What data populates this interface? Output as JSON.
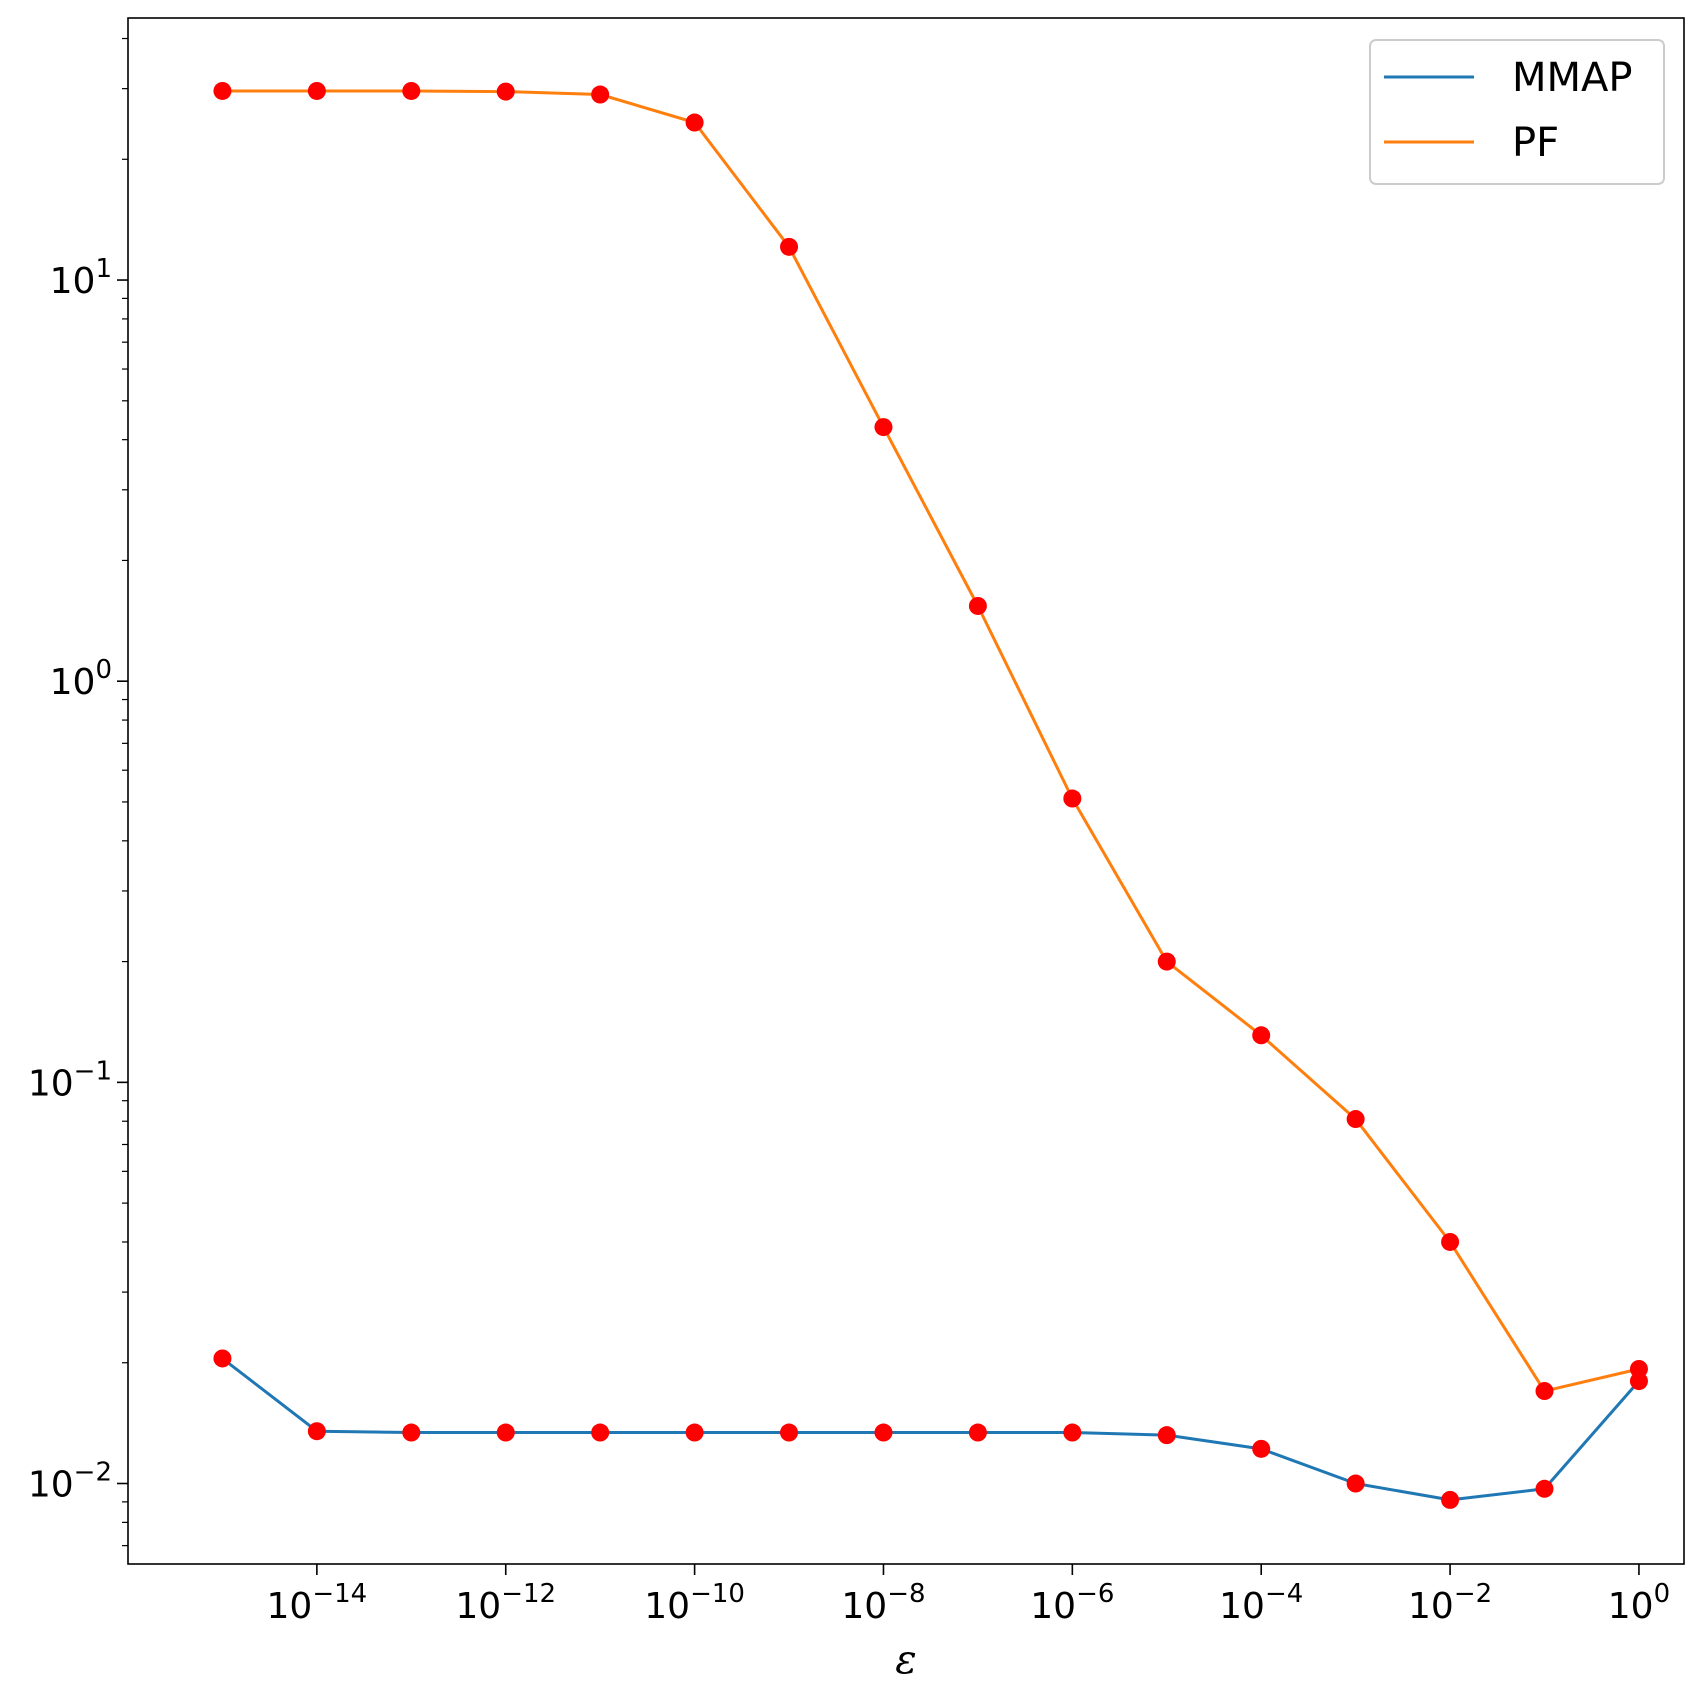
{
  "chart_data": {
    "type": "line",
    "xlabel": "ε",
    "ylabel": "",
    "title": "",
    "x_scale": "log",
    "y_scale": "log",
    "xlim": [
      1e-16,
      3.0
    ],
    "ylim": [
      0.0063,
      45
    ],
    "grid": false,
    "legend_position": "top-right",
    "marker_color": "#ff0000",
    "x": [
      1e-15,
      1e-14,
      1e-13,
      1e-12,
      1e-11,
      1e-10,
      1e-09,
      1e-08,
      1e-07,
      1e-06,
      1e-05,
      0.0001,
      0.001,
      0.01,
      0.1,
      1.0
    ],
    "series": [
      {
        "name": "MMAP",
        "color": "#1f77b4",
        "values": [
          0.0205,
          0.0135,
          0.0134,
          0.0134,
          0.0134,
          0.0134,
          0.0134,
          0.0134,
          0.0134,
          0.0134,
          0.0132,
          0.0122,
          0.01,
          0.0091,
          0.0097,
          0.018
        ]
      },
      {
        "name": "PF",
        "color": "#ff7f0e",
        "values": [
          29.6,
          29.6,
          29.6,
          29.5,
          29.0,
          24.7,
          12.1,
          4.3,
          1.54,
          0.51,
          0.2,
          0.131,
          0.081,
          0.04,
          0.017,
          0.0193
        ]
      }
    ],
    "x_ticks": [
      {
        "value": 1e-14,
        "base": "10",
        "exp": "−14"
      },
      {
        "value": 1e-12,
        "base": "10",
        "exp": "−12"
      },
      {
        "value": 1e-10,
        "base": "10",
        "exp": "−10"
      },
      {
        "value": 1e-08,
        "base": "10",
        "exp": "−8"
      },
      {
        "value": 1e-06,
        "base": "10",
        "exp": "−6"
      },
      {
        "value": 0.0001,
        "base": "10",
        "exp": "−4"
      },
      {
        "value": 0.01,
        "base": "10",
        "exp": "−2"
      },
      {
        "value": 1.0,
        "base": "10",
        "exp": "0"
      }
    ],
    "y_ticks": [
      {
        "value": 0.01,
        "base": "10",
        "exp": "−2"
      },
      {
        "value": 0.1,
        "base": "10",
        "exp": "−1"
      },
      {
        "value": 1,
        "base": "10",
        "exp": "0"
      },
      {
        "value": 10,
        "base": "10",
        "exp": "1"
      }
    ]
  }
}
